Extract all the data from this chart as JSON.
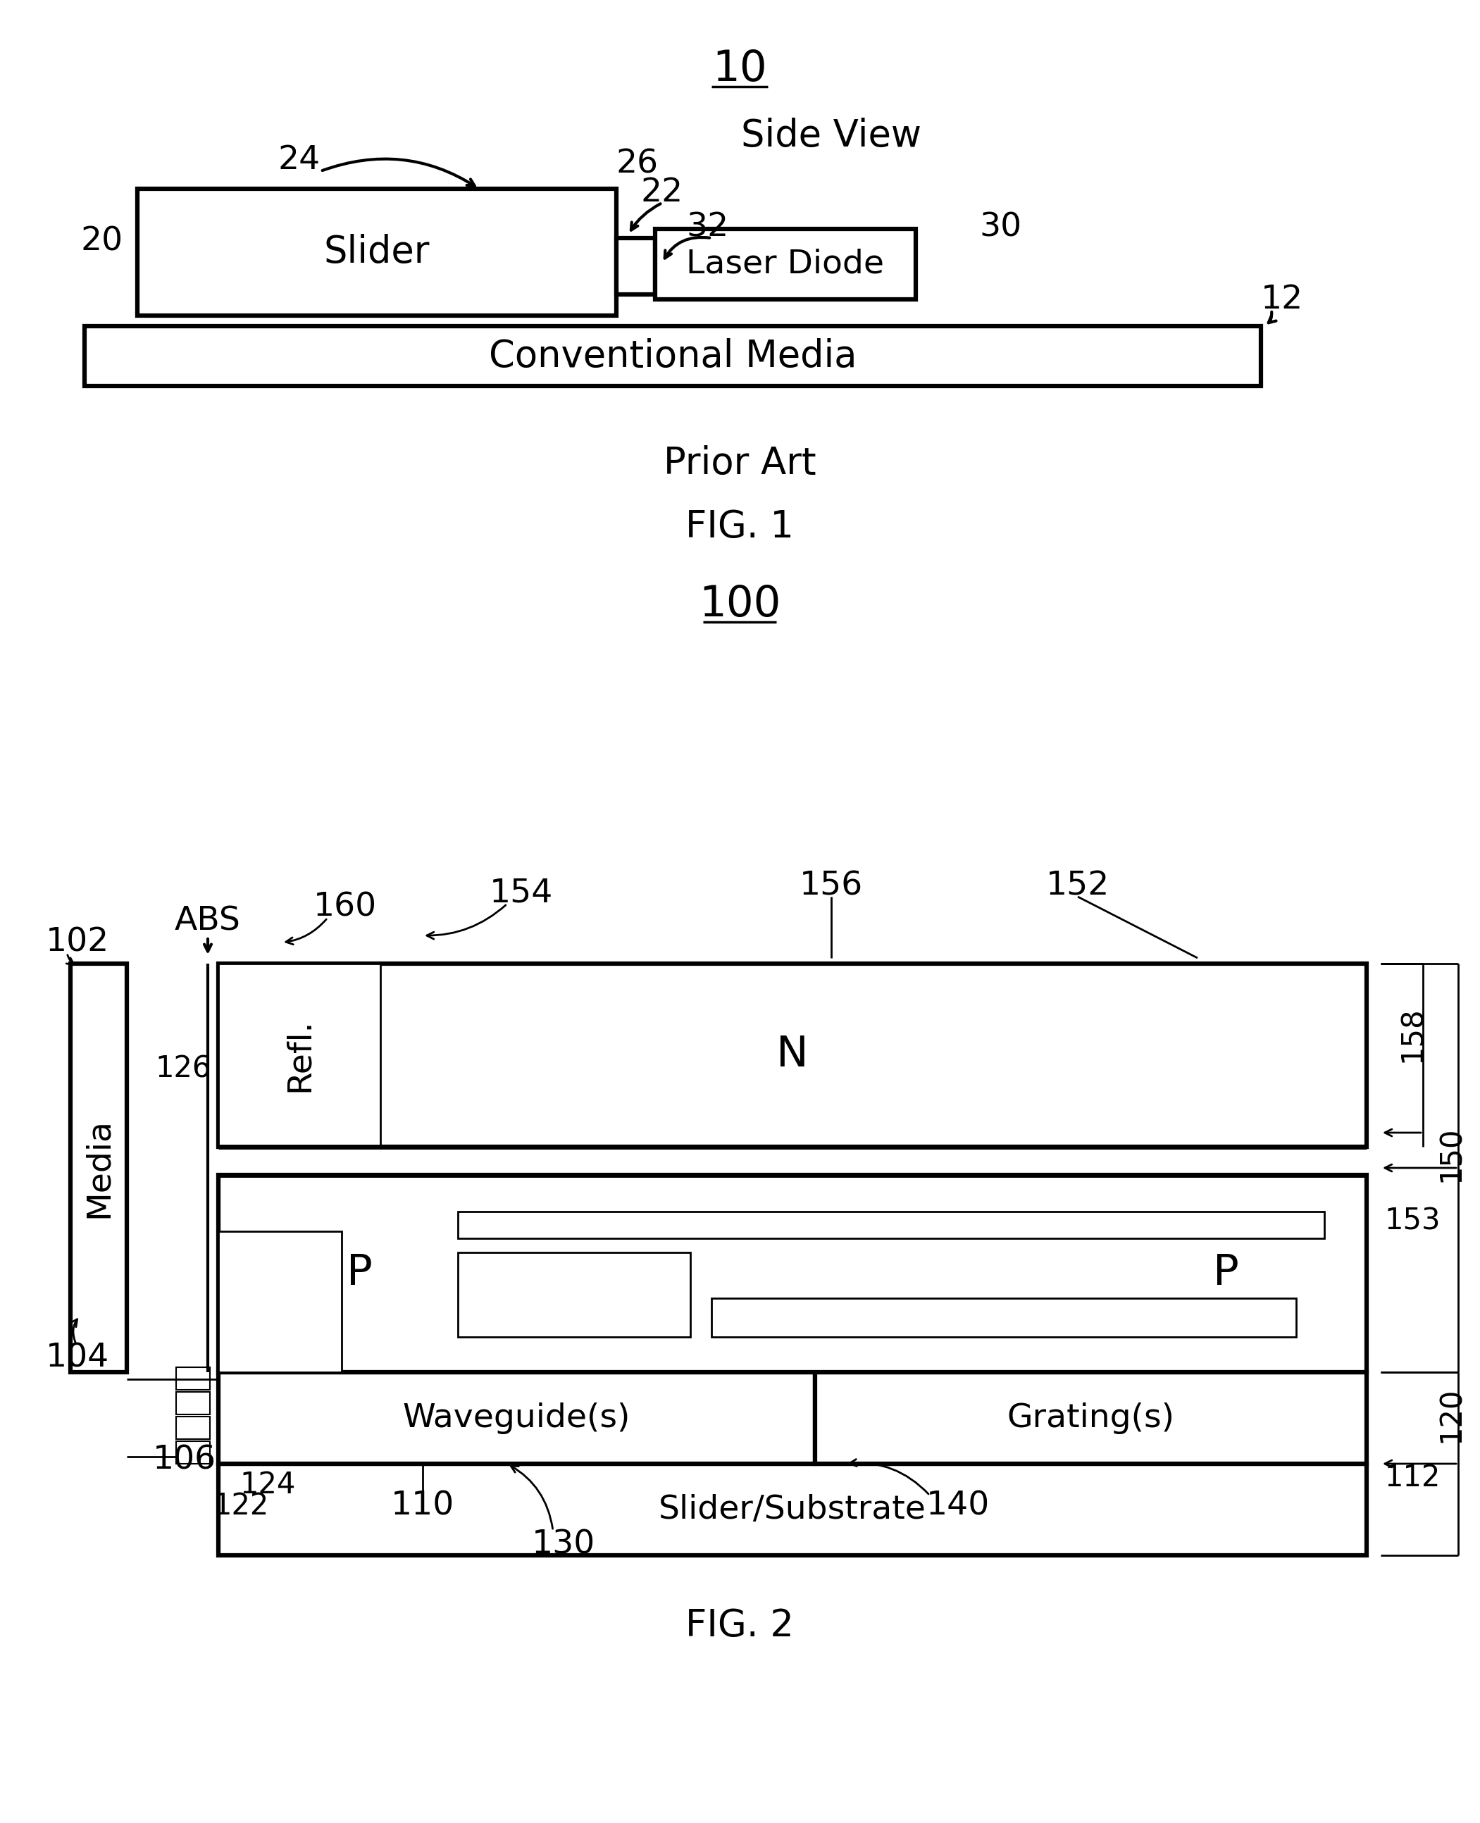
{
  "fig1": {
    "title": "10",
    "subtitle": "Side View",
    "prior_art": "Prior Art",
    "fig_label": "FIG. 1",
    "slider_label": "Slider",
    "laser_label": "Laser Diode",
    "media_label": "Conventional Media"
  },
  "fig2": {
    "title": "100",
    "fig_label": "FIG. 2",
    "n_label": "N",
    "p_label_left": "P",
    "p_label_right": "P",
    "refl_label": "Refl.",
    "media_label": "Media",
    "wg_label": "Waveguide(s)",
    "gr_label": "Grating(s)",
    "sl_label": "Slider/Substrate",
    "abs_label": "ABS"
  }
}
